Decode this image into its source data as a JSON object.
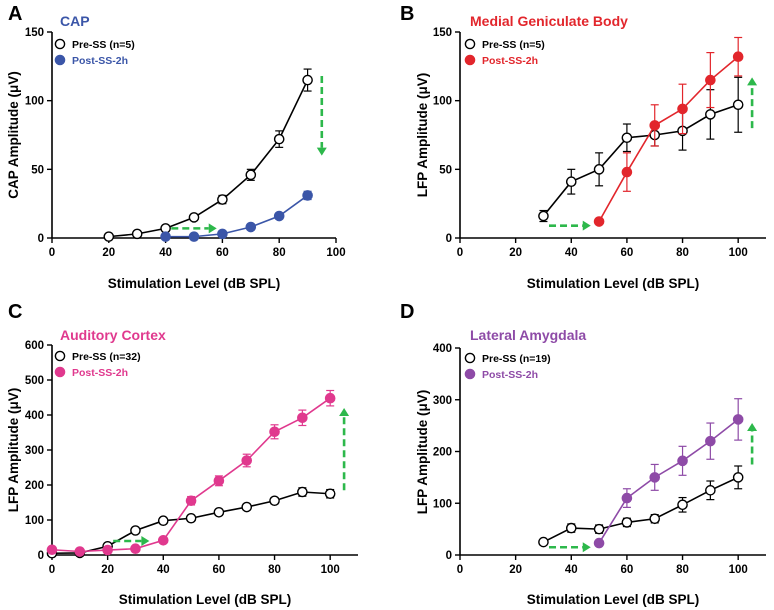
{
  "figure": {
    "arrow_color": "#2db84b"
  },
  "chart_data": [
    {
      "panel": "A",
      "type": "line",
      "title": "CAP",
      "title_color": "#3b56a8",
      "xlabel": "Stimulation Level (dB SPL)",
      "ylabel": "CAP Amplitude (μV)",
      "xlim": [
        0,
        100
      ],
      "ylim": [
        0,
        150
      ],
      "xticks": [
        "0",
        "20",
        "40",
        "60",
        "80",
        "100"
      ],
      "yticks": [
        "0",
        "50",
        "100",
        "150"
      ],
      "legend_position": "top-left",
      "series": [
        {
          "name": "Pre-SS (n=5)",
          "color": "#000000",
          "fill": "#ffffff",
          "legend_color": "#000000",
          "x": [
            20,
            30,
            40,
            50,
            60,
            70,
            80,
            90
          ],
          "y": [
            1,
            3,
            7,
            15,
            28,
            46,
            72,
            115
          ],
          "err": [
            1,
            1,
            1,
            2,
            3,
            4,
            6,
            8
          ]
        },
        {
          "name": "Post-SS-2h",
          "color": "#3b56a8",
          "fill": "#3b56a8",
          "legend_color": "#3b56a8",
          "x": [
            40,
            50,
            60,
            70,
            80,
            90
          ],
          "y": [
            1,
            1,
            3,
            8,
            16,
            31
          ],
          "err": [
            0,
            0,
            1,
            1,
            2,
            3
          ]
        }
      ],
      "arrows": [
        {
          "from": [
            42,
            7
          ],
          "to": [
            58,
            7
          ]
        },
        {
          "from": [
            95,
            118
          ],
          "to": [
            95,
            60
          ]
        }
      ]
    },
    {
      "panel": "B",
      "type": "line",
      "title": "Medial Geniculate Body",
      "title_color": "#e2262c",
      "xlabel": "Stimulation Level (dB SPL)",
      "ylabel": "LFP Amplitude (μV)",
      "xlim": [
        0,
        110
      ],
      "ylim": [
        0,
        150
      ],
      "xticks": [
        "0",
        "20",
        "40",
        "60",
        "80",
        "100"
      ],
      "yticks": [
        "0",
        "50",
        "100",
        "150"
      ],
      "legend_position": "top-left",
      "series": [
        {
          "name": "Pre-SS (n=5)",
          "color": "#000000",
          "fill": "#ffffff",
          "legend_color": "#000000",
          "x": [
            30,
            40,
            50,
            60,
            70,
            80,
            90,
            100
          ],
          "y": [
            16,
            41,
            50,
            73,
            75,
            78,
            90,
            97
          ],
          "err": [
            4,
            9,
            12,
            10,
            8,
            14,
            18,
            20
          ]
        },
        {
          "name": "Post-SS-2h",
          "color": "#e2262c",
          "fill": "#e2262c",
          "legend_color": "#e2262c",
          "x": [
            50,
            60,
            70,
            80,
            90,
            100
          ],
          "y": [
            12,
            48,
            82,
            94,
            115,
            132
          ],
          "err": [
            1,
            14,
            15,
            18,
            20,
            14
          ]
        }
      ],
      "arrows": [
        {
          "from": [
            32,
            9
          ],
          "to": [
            47,
            9
          ]
        },
        {
          "from": [
            105,
            80
          ],
          "to": [
            105,
            117
          ]
        }
      ]
    },
    {
      "panel": "C",
      "type": "line",
      "title": "Auditory Cortex",
      "title_color": "#e0398e",
      "xlabel": "Stimulation Level (dB SPL)",
      "ylabel": "LFP Amplitude (μV)",
      "xlim": [
        0,
        110
      ],
      "ylim": [
        0,
        600
      ],
      "xticks": [
        "0",
        "20",
        "40",
        "60",
        "80",
        "100"
      ],
      "yticks": [
        "0",
        "100",
        "200",
        "300",
        "400",
        "500",
        "600"
      ],
      "legend_position": "top-left",
      "series": [
        {
          "name": "Pre-SS (n=32)",
          "color": "#000000",
          "fill": "#ffffff",
          "legend_color": "#000000",
          "x": [
            0,
            10,
            20,
            30,
            40,
            50,
            60,
            70,
            80,
            90,
            100
          ],
          "y": [
            5,
            6,
            25,
            70,
            98,
            105,
            122,
            137,
            155,
            180,
            175
          ],
          "err": [
            3,
            3,
            4,
            8,
            8,
            8,
            8,
            8,
            9,
            12,
            12
          ]
        },
        {
          "name": "Post-SS-2h",
          "color": "#e0398e",
          "fill": "#e0398e",
          "legend_color": "#e0398e",
          "x": [
            0,
            10,
            20,
            30,
            40,
            50,
            60,
            70,
            80,
            90,
            100
          ],
          "y": [
            15,
            10,
            14,
            18,
            42,
            155,
            212,
            270,
            352,
            392,
            448
          ],
          "err": [
            3,
            3,
            3,
            3,
            5,
            12,
            14,
            18,
            20,
            22,
            22
          ]
        }
      ],
      "arrows": [
        {
          "from": [
            22,
            40
          ],
          "to": [
            35,
            40
          ]
        },
        {
          "from": [
            105,
            185
          ],
          "to": [
            105,
            420
          ]
        }
      ]
    },
    {
      "panel": "D",
      "type": "line",
      "title": "Lateral Amygdala",
      "title_color": "#8e4ba7",
      "xlabel": "Stimulation Level (dB SPL)",
      "ylabel": "LFP Amplitude (μV)",
      "xlim": [
        0,
        110
      ],
      "ylim": [
        0,
        400
      ],
      "xticks": [
        "0",
        "20",
        "40",
        "60",
        "80",
        "100"
      ],
      "yticks": [
        "0",
        "100",
        "200",
        "300",
        "400"
      ],
      "legend_position": "top-left",
      "series": [
        {
          "name": "Pre-SS (n=19)",
          "color": "#000000",
          "fill": "#ffffff",
          "legend_color": "#000000",
          "x": [
            30,
            40,
            50,
            60,
            70,
            80,
            90,
            100
          ],
          "y": [
            25,
            52,
            50,
            63,
            70,
            97,
            125,
            150
          ],
          "err": [
            3,
            8,
            8,
            8,
            8,
            14,
            18,
            22
          ]
        },
        {
          "name": "Post-SS-2h",
          "color": "#8e4ba7",
          "fill": "#8e4ba7",
          "legend_color": "#8e4ba7",
          "x": [
            50,
            60,
            70,
            80,
            90,
            100
          ],
          "y": [
            23,
            110,
            150,
            182,
            220,
            262
          ],
          "err": [
            3,
            18,
            25,
            28,
            35,
            40
          ]
        }
      ],
      "arrows": [
        {
          "from": [
            32,
            15
          ],
          "to": [
            47,
            15
          ]
        },
        {
          "from": [
            105,
            175
          ],
          "to": [
            105,
            255
          ]
        }
      ]
    }
  ]
}
